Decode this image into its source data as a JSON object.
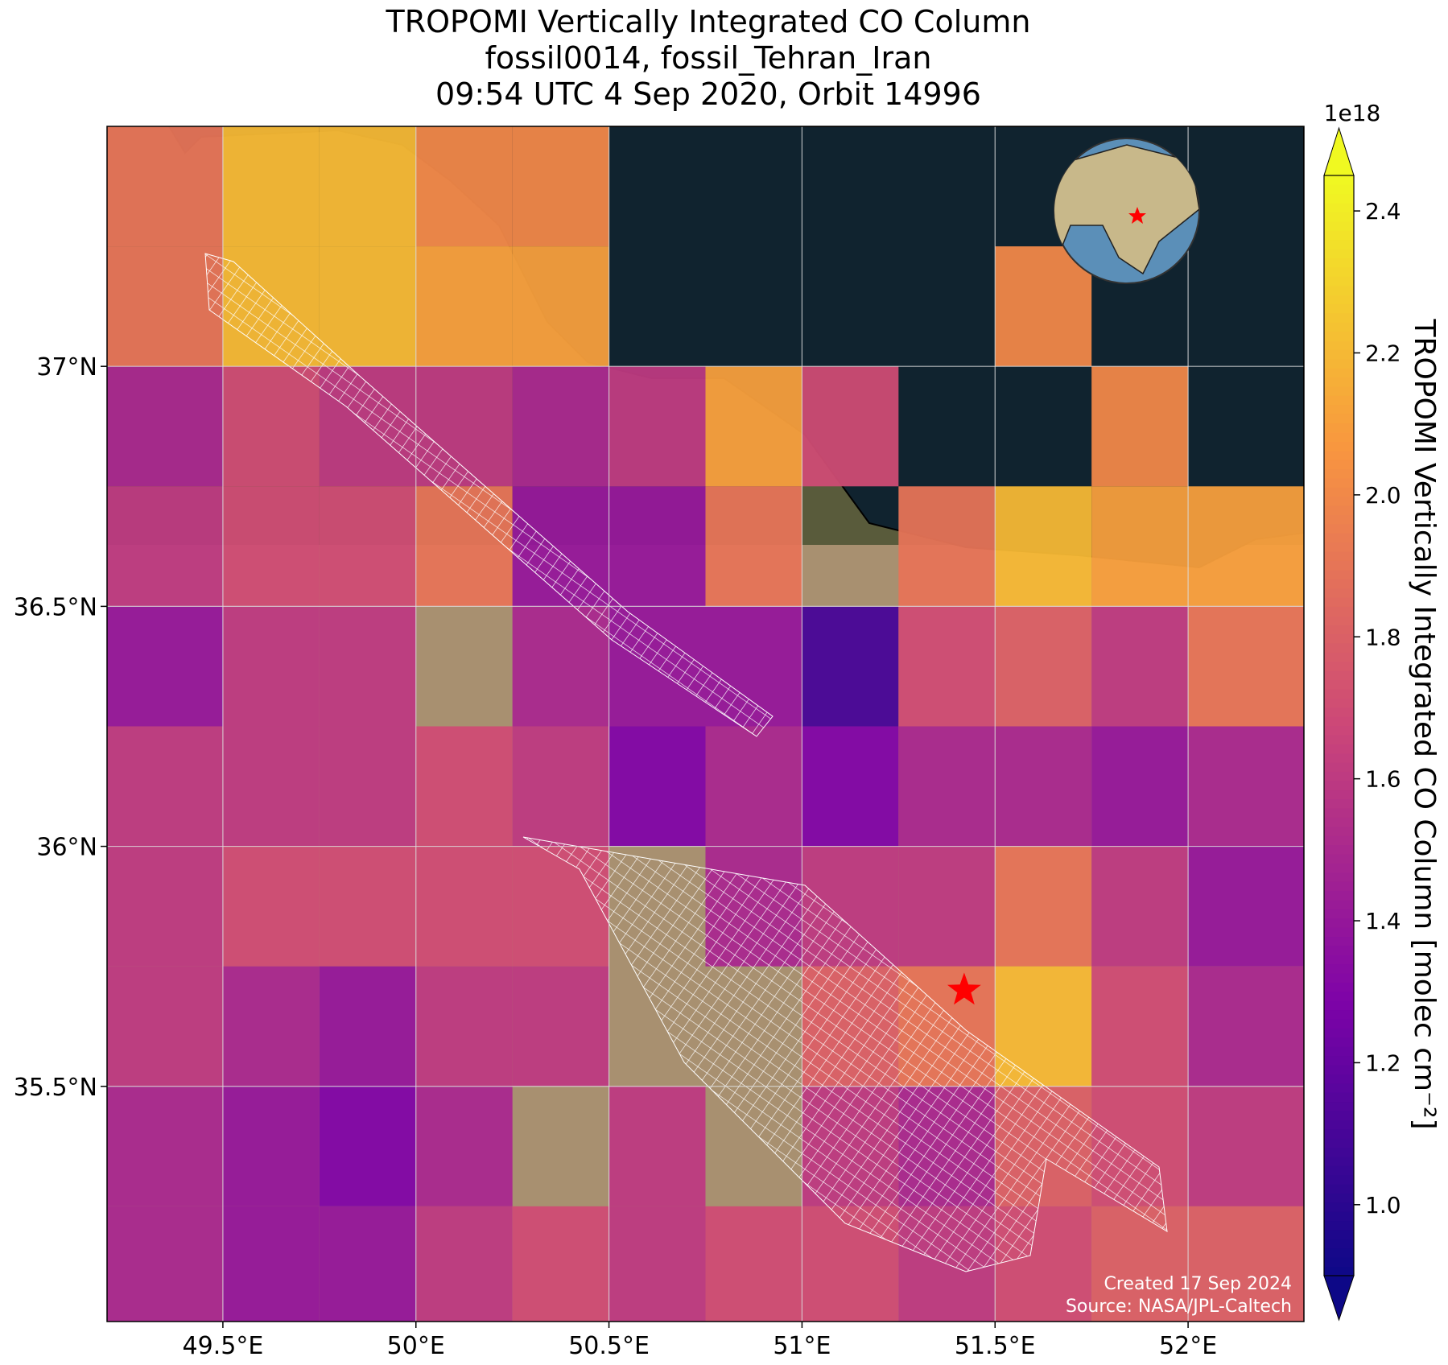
{
  "chart_data": {
    "type": "map",
    "title": [
      "TROPOMI Vertically Integrated CO Column",
      "fossil0014, fossil_Tehran_Iran",
      "09:54 UTC 4 Sep 2020, Orbit 14996"
    ],
    "xlim": [
      49.2,
      52.3
    ],
    "ylim": [
      35.01,
      37.5
    ],
    "xticks": [
      {
        "value": 49.5,
        "label": "49.5°E"
      },
      {
        "value": 50,
        "label": "50°E"
      },
      {
        "value": 50.5,
        "label": "50.5°E"
      },
      {
        "value": 51,
        "label": "51°E"
      },
      {
        "value": 51.5,
        "label": "51.5°E"
      },
      {
        "value": 52,
        "label": "52°E"
      }
    ],
    "yticks": [
      {
        "value": 35.5,
        "label": "35.5°N"
      },
      {
        "value": 36,
        "label": "36°N"
      },
      {
        "value": 36.5,
        "label": "36.5°N"
      },
      {
        "value": 37,
        "label": "37°N"
      }
    ],
    "grid": true,
    "colormap": "plasma",
    "clim": [
      0.9,
      2.45
    ],
    "colorbar_ticks": [
      {
        "value": 1.0,
        "label": "1.0"
      },
      1.2,
      1.4,
      1.6,
      1.8,
      {
        "value": 2.0,
        "label": "2.0"
      },
      2.2,
      2.4
    ],
    "colorbar_offset": "1e18",
    "colorbar_label": "TROPOMI Vertically Integrated CO Column [molec cm⁻²]",
    "lon_edges": [
      49.2,
      49.5,
      49.75,
      50,
      50.25,
      50.5,
      50.75,
      51,
      51.25,
      51.5,
      51.75,
      52,
      52.3
    ],
    "lat_edges": [
      37.5,
      37.25,
      37,
      36.75,
      36.5,
      36.25,
      36,
      35.75,
      35.5,
      35.25,
      35.01
    ],
    "values": [
      [
        1.9,
        2.2,
        2.2,
        2.0,
        2.0,
        null,
        null,
        null,
        null,
        null,
        null,
        null
      ],
      [
        1.9,
        2.2,
        2.2,
        2.1,
        2.1,
        null,
        null,
        null,
        null,
        2.0,
        null,
        null
      ],
      [
        1.5,
        1.7,
        1.6,
        1.6,
        1.5,
        1.6,
        2.1,
        1.7,
        null,
        null,
        2.0,
        null
      ],
      [
        1.6,
        1.7,
        1.7,
        1.9,
        1.4,
        1.4,
        1.9,
        null,
        1.9,
        2.2,
        2.1,
        2.1
      ],
      [
        1.4,
        1.6,
        1.6,
        null,
        1.5,
        1.4,
        1.4,
        1.1,
        1.7,
        1.8,
        1.6,
        1.9
      ],
      [
        1.6,
        1.6,
        1.6,
        1.7,
        1.6,
        1.3,
        1.5,
        1.3,
        1.5,
        1.5,
        1.4,
        1.5
      ],
      [
        1.6,
        1.7,
        1.7,
        1.7,
        1.7,
        null,
        1.5,
        1.6,
        1.6,
        1.9,
        1.6,
        1.4
      ],
      [
        1.6,
        1.5,
        1.4,
        1.6,
        1.6,
        null,
        null,
        1.8,
        1.9,
        2.2,
        1.7,
        1.5
      ],
      [
        1.5,
        1.4,
        1.3,
        1.5,
        null,
        1.6,
        null,
        1.6,
        1.5,
        1.8,
        1.7,
        1.6
      ],
      [
        1.5,
        1.4,
        1.4,
        1.6,
        1.7,
        1.6,
        1.7,
        1.7,
        1.6,
        1.7,
        1.8,
        1.8
      ]
    ],
    "site": {
      "lon": 51.42,
      "lat": 35.7,
      "color": "#ff0000"
    },
    "credits": [
      "Created 17 Sep 2024",
      "Source: NASA/JPL-Caltech"
    ]
  }
}
